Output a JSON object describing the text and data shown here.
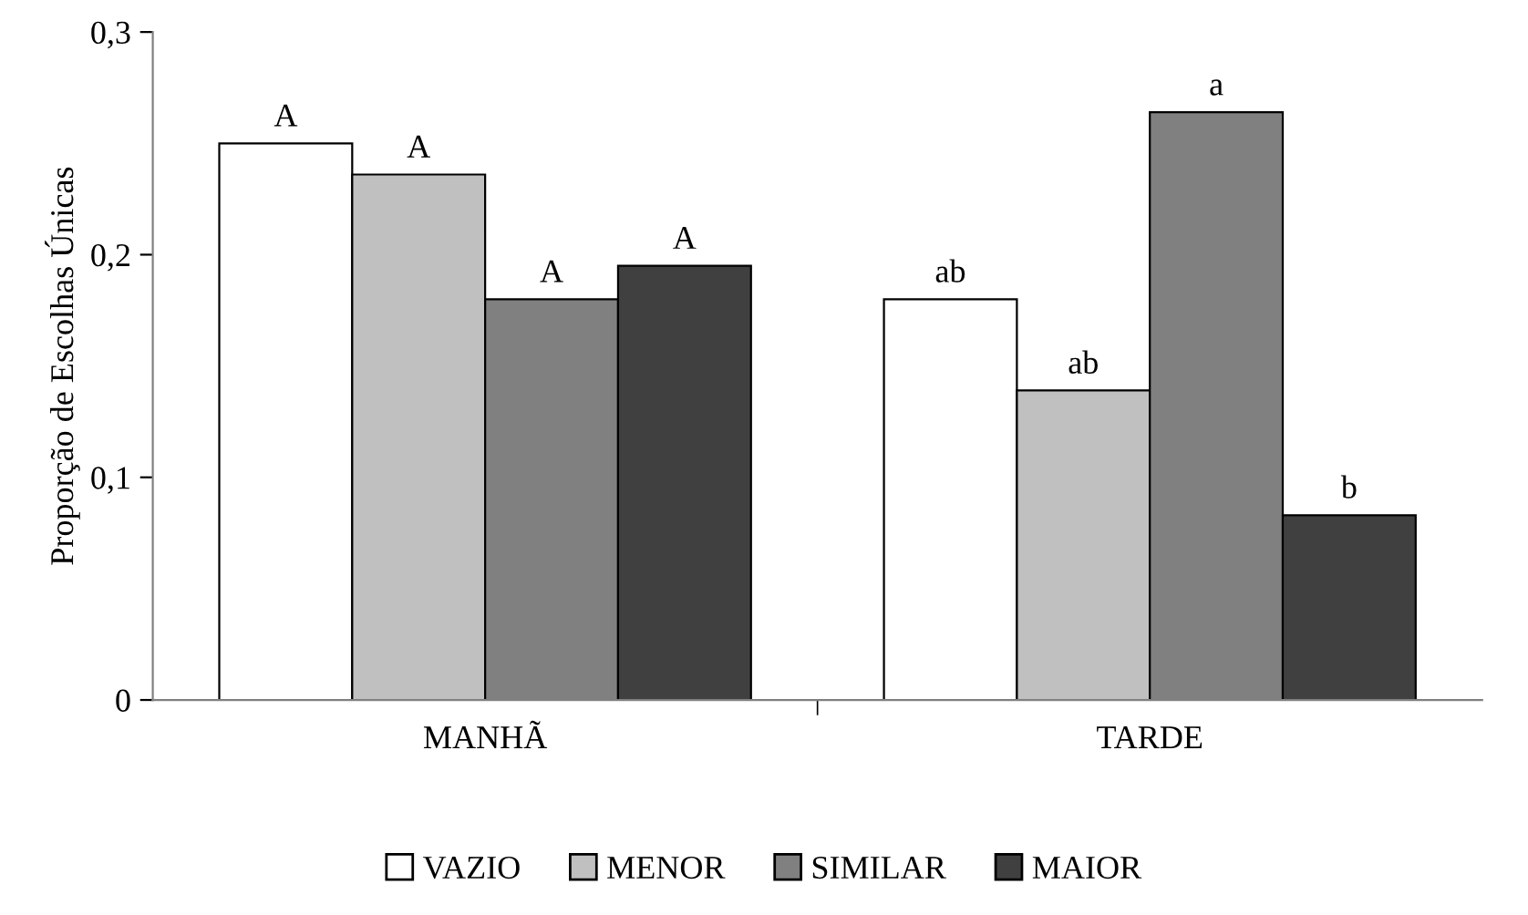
{
  "chart_data": {
    "type": "bar",
    "ylabel": "Proporção de Escolhas Únicas",
    "categories": [
      "MANHÃ",
      "TARDE"
    ],
    "series": [
      {
        "name": "VAZIO",
        "color": "#ffffff",
        "values": [
          0.25,
          0.18
        ],
        "value_labels": [
          "A",
          "ab"
        ]
      },
      {
        "name": "MENOR",
        "color": "#c0c0c0",
        "values": [
          0.236,
          0.139
        ],
        "value_labels": [
          "A",
          "ab"
        ]
      },
      {
        "name": "SIMILAR",
        "color": "#808080",
        "values": [
          0.18,
          0.264
        ],
        "value_labels": [
          "A",
          "a"
        ]
      },
      {
        "name": "MAIOR",
        "color": "#404040",
        "values": [
          0.195,
          0.083
        ],
        "value_labels": [
          "A",
          "b"
        ]
      }
    ],
    "ylim": [
      0,
      0.3
    ],
    "yticks": [
      0,
      {
        "value": 0.1,
        "label": "0,1"
      },
      {
        "value": 0.2,
        "label": "0,2"
      },
      {
        "value": 0.3,
        "label": "0,3"
      }
    ],
    "grid": false,
    "legend": "bottom"
  }
}
